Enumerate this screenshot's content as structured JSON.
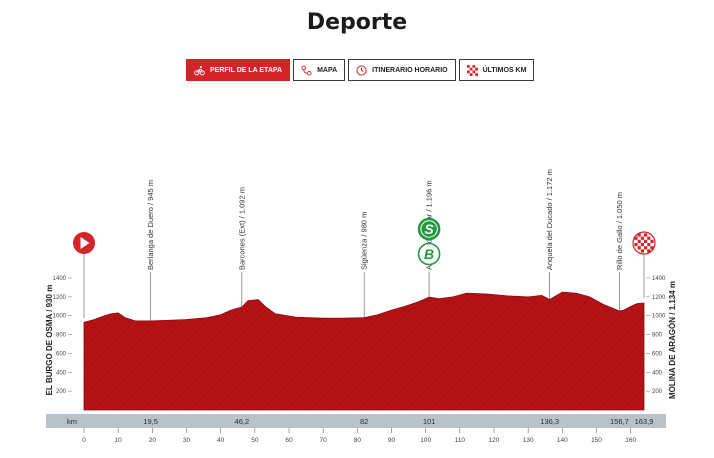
{
  "page": {
    "title": "Deporte"
  },
  "tabs": [
    {
      "label": "PERFIL DE LA ETAPA",
      "icon": "cyclist-icon",
      "active": true
    },
    {
      "label": "MAPA",
      "icon": "route-icon",
      "active": false
    },
    {
      "label": "ITINERARIO HORARIO",
      "icon": "clock-icon",
      "active": false
    },
    {
      "label": "ÚLTIMOS KM",
      "icon": "checkered-flag-icon",
      "active": false
    }
  ],
  "colors": {
    "accent": "#d42427",
    "profile": "#b51216",
    "axis_bar": "#b9c2c7"
  },
  "chart_data": {
    "type": "area",
    "start_label": "EL BURGO DE OSMA / 930 m",
    "finish_label": "MOLINA DE ARAGÓN / 1.134 m",
    "km_label": "km",
    "x_range": [
      0,
      163.9
    ],
    "y_range": [
      0,
      1400
    ],
    "y_ticks": [
      200,
      400,
      600,
      800,
      1000,
      1200,
      1400
    ],
    "x_ticks": [
      0,
      10,
      20,
      30,
      40,
      50,
      60,
      70,
      80,
      90,
      100,
      110,
      120,
      130,
      140,
      150,
      160
    ],
    "profile": [
      [
        0,
        930
      ],
      [
        3,
        960
      ],
      [
        6,
        1000
      ],
      [
        8,
        1020
      ],
      [
        10,
        1030
      ],
      [
        12,
        980
      ],
      [
        15,
        945
      ],
      [
        19.5,
        945
      ],
      [
        24,
        950
      ],
      [
        30,
        960
      ],
      [
        36,
        980
      ],
      [
        40,
        1010
      ],
      [
        43,
        1060
      ],
      [
        46.2,
        1092
      ],
      [
        48,
        1160
      ],
      [
        51,
        1170
      ],
      [
        53,
        1100
      ],
      [
        56,
        1020
      ],
      [
        62,
        985
      ],
      [
        70,
        975
      ],
      [
        76,
        975
      ],
      [
        82,
        980
      ],
      [
        86,
        1010
      ],
      [
        90,
        1060
      ],
      [
        94,
        1100
      ],
      [
        98,
        1150
      ],
      [
        101,
        1196
      ],
      [
        104,
        1180
      ],
      [
        108,
        1200
      ],
      [
        112,
        1240
      ],
      [
        118,
        1230
      ],
      [
        124,
        1210
      ],
      [
        130,
        1200
      ],
      [
        134,
        1215
      ],
      [
        136.3,
        1172
      ],
      [
        140,
        1250
      ],
      [
        144,
        1240
      ],
      [
        148,
        1200
      ],
      [
        152,
        1120
      ],
      [
        156.7,
        1050
      ],
      [
        158,
        1060
      ],
      [
        160,
        1100
      ],
      [
        162,
        1130
      ],
      [
        163.9,
        1134
      ]
    ],
    "points": [
      {
        "km": 19.5,
        "km_label": "19,5",
        "label": "Berlanga de Duero / 945 m",
        "alt": 945
      },
      {
        "km": 46.2,
        "km_label": "46,2",
        "label": "Barcones (Ext) / 1.092 m",
        "alt": 1092
      },
      {
        "km": 82,
        "km_label": "82",
        "label": "Sigüenza / 980 m",
        "alt": 980
      },
      {
        "km": 101,
        "km_label": "101",
        "label": "Alcolea del Pinar / 1.196 m",
        "alt": 1196
      },
      {
        "km": 136.3,
        "km_label": "136,3",
        "label": "Anquela del Ducado / 1.172 m",
        "alt": 1172
      },
      {
        "km": 156.7,
        "km_label": "156,7",
        "label": "Rillo de Gallo / 1.050 m",
        "alt": 1050
      },
      {
        "km": 163.9,
        "km_label": "163,9",
        "label": "",
        "alt": 1134
      }
    ],
    "markers": [
      {
        "km": 101,
        "letter": "S",
        "color": "#1f9a3d",
        "filled": true
      },
      {
        "km": 101,
        "letter": "B",
        "color": "#1f9a3d",
        "filled": false
      }
    ]
  }
}
